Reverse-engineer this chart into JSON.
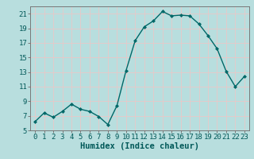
{
  "x": [
    0,
    1,
    2,
    3,
    4,
    5,
    6,
    7,
    8,
    9,
    10,
    11,
    12,
    13,
    14,
    15,
    16,
    17,
    18,
    19,
    20,
    21,
    22,
    23
  ],
  "y": [
    6.2,
    7.4,
    6.8,
    7.6,
    8.6,
    7.9,
    7.6,
    6.9,
    5.8,
    8.4,
    13.2,
    17.3,
    19.2,
    20.0,
    21.3,
    20.7,
    20.8,
    20.7,
    19.6,
    18.0,
    16.2,
    13.1,
    11.0,
    12.4
  ],
  "xlabel": "Humidex (Indice chaleur)",
  "bg_color": "#b8dede",
  "grid_color": "#e8c8c8",
  "line_color": "#006868",
  "marker_color": "#006868",
  "xlim": [
    -0.5,
    23.5
  ],
  "ylim": [
    5,
    22
  ],
  "yticks": [
    5,
    7,
    9,
    11,
    13,
    15,
    17,
    19,
    21
  ],
  "xticks": [
    0,
    1,
    2,
    3,
    4,
    5,
    6,
    7,
    8,
    9,
    10,
    11,
    12,
    13,
    14,
    15,
    16,
    17,
    18,
    19,
    20,
    21,
    22,
    23
  ],
  "tick_color": "#005858",
  "label_fontsize": 6.5,
  "xlabel_fontsize": 7.5
}
